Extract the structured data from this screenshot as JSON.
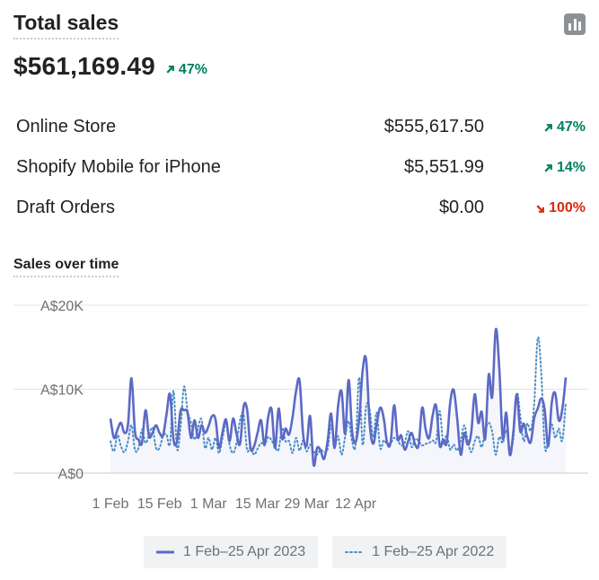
{
  "header": {
    "title": "Total sales",
    "chart_toggle_icon": "bar-chart-icon"
  },
  "total": {
    "value": "$561,169.49",
    "change": "47%",
    "direction": "up"
  },
  "breakdown": [
    {
      "label": "Online Store",
      "value": "$555,617.50",
      "change": "47%",
      "direction": "up"
    },
    {
      "label": "Shopify Mobile for iPhone",
      "value": "$5,551.99",
      "change": "14%",
      "direction": "up"
    },
    {
      "label": "Draft Orders",
      "value": "$0.00",
      "change": "100%",
      "direction": "down"
    }
  ],
  "colors": {
    "up": "#007f5f",
    "down": "#d72c0d",
    "current_series": "#5c6ac4",
    "previous_series": "#4b8ec4"
  },
  "chart_data": {
    "type": "line",
    "title": "Sales over time",
    "y_ticks": [
      "A$0",
      "A$10K",
      "A$20K"
    ],
    "ylim": [
      0,
      20000
    ],
    "x_ticks": [
      "1 Feb",
      "15 Feb",
      "1 Mar",
      "15 Mar",
      "29 Mar",
      "12 Apr"
    ],
    "grid": true,
    "legend_position": "bottom",
    "series": [
      {
        "name": "1 Feb–25 Apr 2023",
        "style": "solid",
        "values": [
          6500,
          4200,
          5200,
          6000,
          4800,
          5800,
          11300,
          5000,
          4000,
          3600,
          7500,
          4400,
          4800,
          5700,
          4800,
          4500,
          7000,
          9400,
          4000,
          3800,
          7400,
          7500,
          7200,
          4200,
          6300,
          4200,
          5700,
          4800,
          5600,
          6800,
          6400,
          3000,
          4900,
          6400,
          3800,
          6500,
          4700,
          3500,
          7900,
          7600,
          3000,
          3200,
          4800,
          6300,
          3400,
          6600,
          7600,
          3000,
          7700,
          4100,
          5300,
          4600,
          6700,
          9800,
          11000,
          4700,
          3300,
          6800,
          1000,
          3000,
          2700,
          1700,
          3800,
          7100,
          3000,
          8000,
          9700,
          4700,
          11100,
          5000,
          3700,
          6400,
          12200,
          13500,
          6000,
          3500,
          5800,
          7800,
          6600,
          3600,
          3700,
          8100,
          4100,
          4500,
          2800,
          3800,
          4800,
          3400,
          3400,
          7800,
          5200,
          4200,
          6900,
          8000,
          3300,
          4000,
          3600,
          8400,
          9900,
          6500,
          2200,
          4800,
          3400,
          4800,
          9400,
          6000,
          7300,
          4100,
          11700,
          9100,
          17100,
          12600,
          4200,
          7200,
          2200,
          4800,
          9400,
          5000,
          5900,
          4400,
          3700,
          6600,
          7700,
          8900,
          7500,
          3200,
          8400,
          9500,
          6300,
          7600,
          11400
        ]
      },
      {
        "name": "1 Feb–25 Apr 2022",
        "style": "dotted",
        "values": [
          3800,
          2600,
          4500,
          3200,
          2500,
          3800,
          5700,
          2800,
          3000,
          5200,
          3600,
          4500,
          5400,
          3000,
          3000,
          4400,
          4600,
          3500,
          9800,
          2900,
          5400,
          10300,
          7500,
          6000,
          4000,
          5400,
          6400,
          3000,
          4200,
          2800,
          4200,
          2400,
          4200,
          5900,
          3400,
          2400,
          3600,
          6300,
          7000,
          2800,
          3100,
          2200,
          2900,
          3600,
          3300,
          4300,
          3900,
          3100,
          2800,
          5400,
          3800,
          3800,
          2400,
          4200,
          2700,
          3900,
          2600,
          3400,
          2600,
          2200,
          2800,
          2500,
          2900,
          5700,
          3200,
          4400,
          2200,
          4300,
          6200,
          3800,
          3400,
          11400,
          3400,
          8000,
          7600,
          4300,
          7200,
          3000,
          3900,
          3500,
          3600,
          4200,
          3900,
          3300,
          3600,
          5000,
          3100,
          4100,
          3800,
          3300,
          3500,
          3600,
          3900,
          3800,
          7400,
          3600,
          4500,
          2800,
          3400,
          2700,
          3900,
          5700,
          3900,
          2500,
          3800,
          4400,
          3100,
          5000,
          6000,
          4900,
          2200,
          4300,
          3600,
          5100,
          3000,
          4000,
          9500,
          6900,
          3800,
          5900,
          5100,
          8400,
          16100,
          11900,
          3200,
          3900,
          5800,
          4200,
          5300,
          3900,
          8400
        ]
      }
    ]
  }
}
